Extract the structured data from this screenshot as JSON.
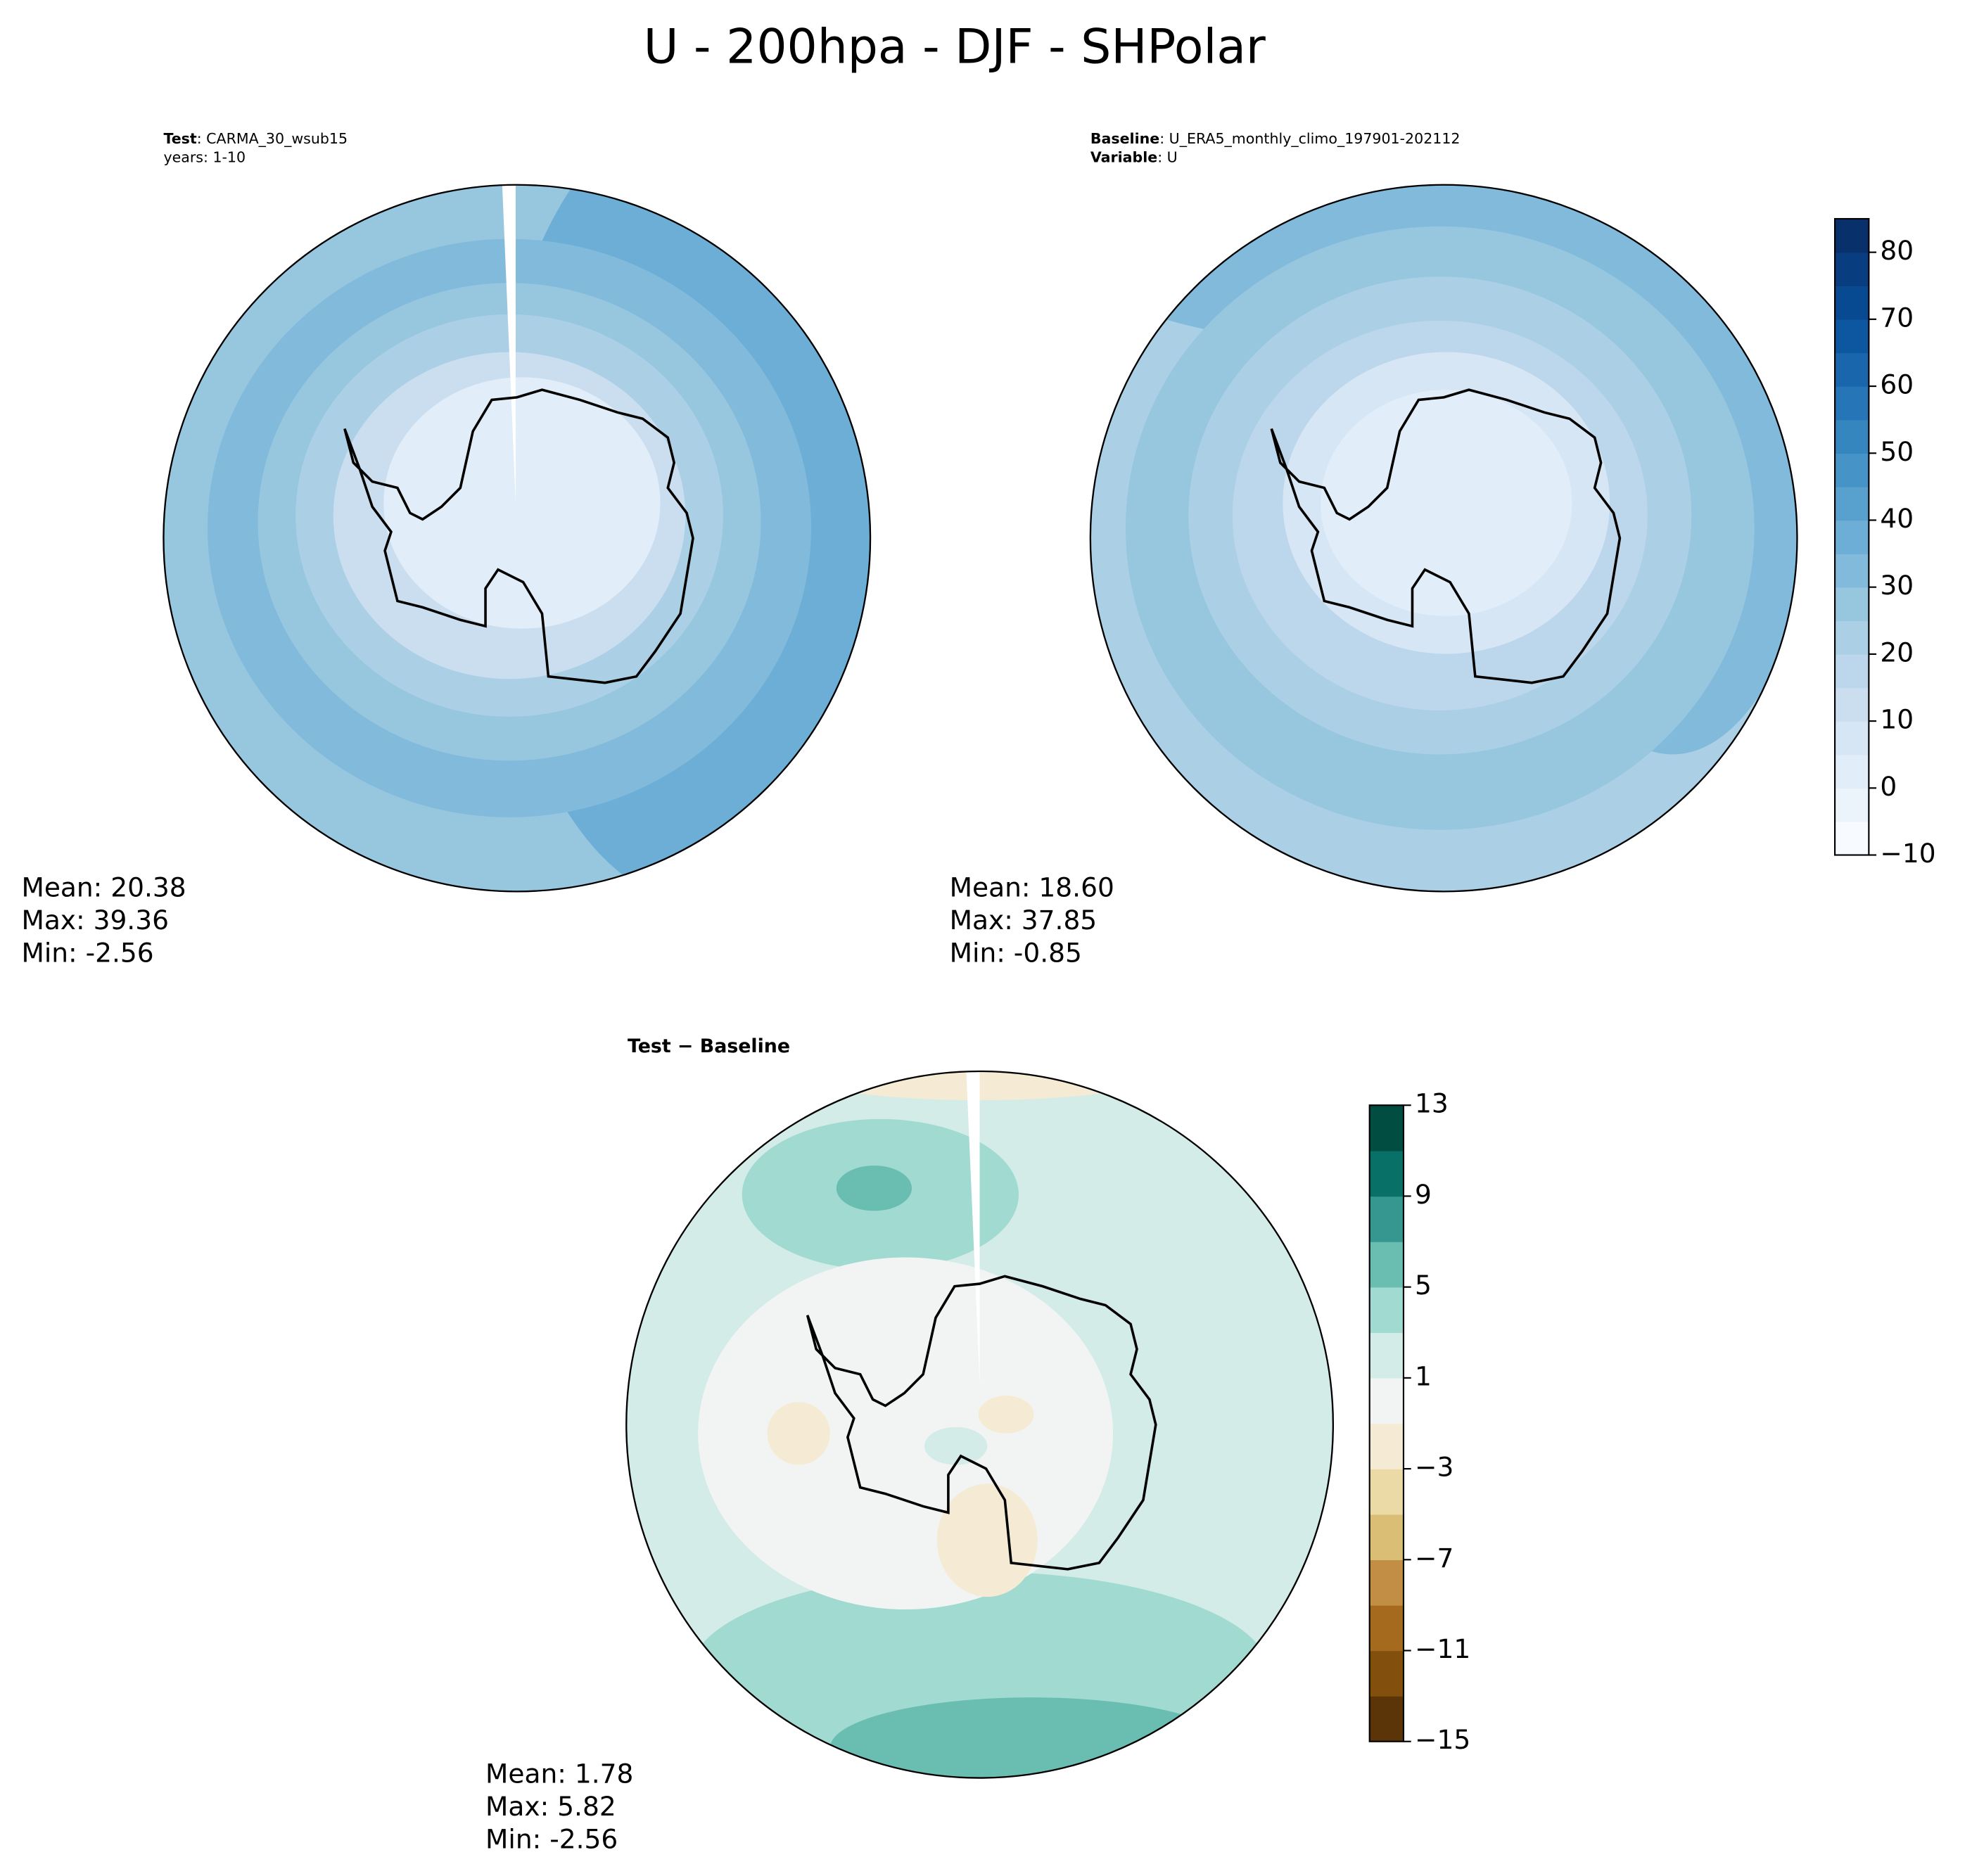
{
  "title": "U - 200hpa - DJF - SHPolar",
  "chart_data": [
    {
      "type": "map",
      "header": [
        {
          "bold": "Test",
          "text": ": CARMA_30_wsub15"
        },
        {
          "text": "years: 1-10"
        }
      ],
      "stats": [
        "Mean: 20.38",
        "Max: 39.36",
        "Min: -2.56"
      ]
    },
    {
      "type": "map",
      "header": [
        {
          "bold": "Baseline",
          "text": ": U_ERA5_monthly_climo_197901-202112"
        },
        {
          "bold": "Variable",
          "text": ": U"
        }
      ],
      "stats": [
        "Mean: 18.60",
        "Max: 37.85",
        "Min: -0.85"
      ]
    },
    {
      "type": "map",
      "header": [
        {
          "bold": "Test − Baseline"
        }
      ],
      "stats": [
        "Mean:  1.78",
        "Max:  5.82",
        "Min: -2.56"
      ]
    },
    {
      "type": "colorbar",
      "ylim": [
        -10,
        85
      ],
      "yticks": [
        {
          "value": -10,
          "label": "−10"
        },
        0,
        10,
        20,
        30,
        40,
        50,
        60,
        70,
        80
      ],
      "levels": [
        -10,
        -5,
        0,
        5,
        10,
        15,
        20,
        25,
        30,
        35,
        40,
        45,
        50,
        55,
        60,
        65,
        70,
        75,
        80,
        85
      ],
      "colors": [
        "#f7fbff",
        "#ebf3fb",
        "#e1edf8",
        "#d6e6f4",
        "#cadef0",
        "#bcd7eb",
        "#abd0e6",
        "#97c6df",
        "#82badb",
        "#6caed6",
        "#58a1cf",
        "#4694c7",
        "#3585bf",
        "#2575b7",
        "#1966ad",
        "#0d57a1",
        "#084a91",
        "#083d7f",
        "#08306b"
      ]
    },
    {
      "type": "colorbar",
      "ylim": [
        -15,
        13
      ],
      "yticks": [
        {
          "value": -15,
          "label": "−15"
        },
        {
          "value": -11,
          "label": "−11"
        },
        {
          "value": -7,
          "label": "−7"
        },
        {
          "value": -3,
          "label": "−3"
        },
        1,
        5,
        9,
        13
      ],
      "levels": [
        -15,
        -13,
        -11,
        -9,
        -7,
        -5,
        -3,
        -1,
        1,
        3,
        5,
        7,
        9,
        11,
        13
      ],
      "colors": [
        "#5b3508",
        "#824f0c",
        "#a66a1f",
        "#c28d44",
        "#dbbe75",
        "#ebd9a6",
        "#f5ebd4",
        "#f2f4f3",
        "#d3ece8",
        "#a1dad0",
        "#6abdb1",
        "#35978f",
        "#087066",
        "#014d41"
      ]
    }
  ]
}
